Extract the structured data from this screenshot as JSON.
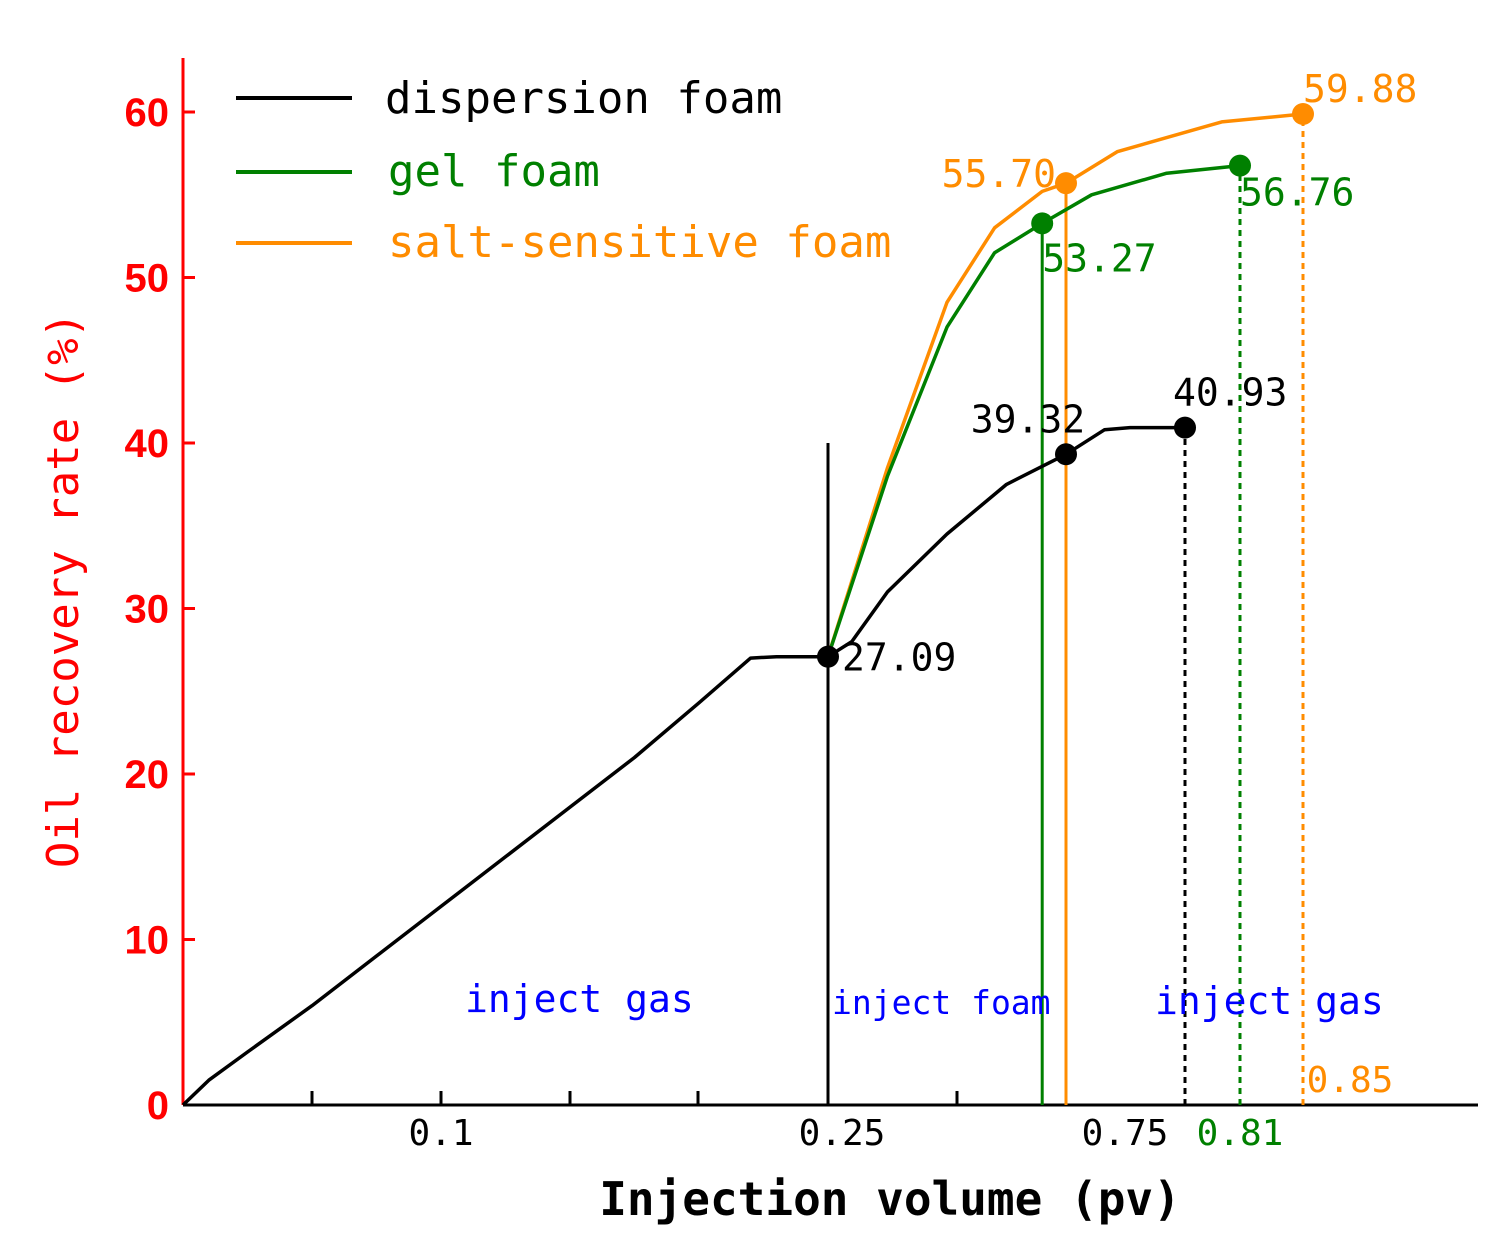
{
  "chart_data": {
    "type": "line",
    "xlabel": "Injection volume (pv)",
    "ylabel": "Oil recovery rate (%)",
    "ylim": [
      0,
      63
    ],
    "yticks": [
      "0",
      "10",
      "20",
      "30",
      "40",
      "50",
      "60"
    ],
    "xticks": [
      {
        "label": "0.1",
        "color": "#000000"
      },
      {
        "label": "0.25",
        "color": "#000000"
      },
      {
        "label": "0.75",
        "color": "#000000"
      },
      {
        "label": "0.81",
        "color": "#008000"
      },
      {
        "label": "0.85",
        "color": "#FF8C00"
      }
    ],
    "axis_color_y": "#FF0000",
    "series": [
      {
        "name": "dispersion foam",
        "color": "#000000",
        "points": [
          [
            0,
            0
          ],
          [
            0.02,
            1.5
          ],
          [
            0.05,
            3.2
          ],
          [
            0.1,
            6
          ],
          [
            0.15,
            9
          ],
          [
            0.2,
            12
          ],
          [
            0.25,
            15
          ],
          [
            0.3,
            18
          ],
          [
            0.35,
            21
          ],
          [
            0.4,
            24.3
          ],
          [
            0.44,
            27
          ],
          [
            0.46,
            27.09
          ],
          [
            0.5,
            27.09
          ],
          [
            0.52,
            28
          ],
          [
            0.55,
            31
          ],
          [
            0.6,
            34.5
          ],
          [
            0.65,
            37.5
          ],
          [
            0.7,
            39.32
          ],
          [
            0.73,
            40.8
          ],
          [
            0.75,
            40.93
          ],
          [
            0.78,
            40.93
          ]
        ],
        "markers": [
          {
            "x": 0.5,
            "y": 27.09,
            "label": "27.09"
          },
          {
            "x": 0.7,
            "y": 39.32,
            "label": "39.32"
          },
          {
            "x": 0.78,
            "y": 40.93,
            "label": "40.93"
          }
        ]
      },
      {
        "name": "gel foam",
        "color": "#008000",
        "points": [
          [
            0.5,
            27.09
          ],
          [
            0.55,
            38
          ],
          [
            0.6,
            47
          ],
          [
            0.64,
            51.5
          ],
          [
            0.68,
            53.27
          ],
          [
            0.72,
            55
          ],
          [
            0.77,
            56.3
          ],
          [
            0.81,
            56.76
          ]
        ],
        "markers": [
          {
            "x": 0.68,
            "y": 53.27,
            "label": "53.27"
          },
          {
            "x": 0.81,
            "y": 56.76,
            "label": "56.76"
          }
        ]
      },
      {
        "name": "salt-sensitive foam",
        "color": "#FF8C00",
        "points": [
          [
            0.5,
            27.09
          ],
          [
            0.55,
            38.5
          ],
          [
            0.6,
            48.5
          ],
          [
            0.64,
            53
          ],
          [
            0.68,
            55.2
          ],
          [
            0.7,
            55.7
          ],
          [
            0.74,
            57.6
          ],
          [
            0.8,
            59.4
          ],
          [
            0.85,
            59.88
          ]
        ],
        "markers": [
          {
            "x": 0.7,
            "y": 55.7,
            "label": "55.70"
          },
          {
            "x": 0.85,
            "y": 59.88,
            "label": "59.88"
          }
        ]
      }
    ],
    "vertical_lines": [
      {
        "x": 0.5,
        "y_top": 40,
        "color": "#000000",
        "dashed": false
      },
      {
        "x": 0.7,
        "y_top": 39.32,
        "color": "#000000",
        "dashed": false
      },
      {
        "x": 0.68,
        "y_top": 53.27,
        "color": "#008000",
        "dashed": false
      },
      {
        "x": 0.7,
        "y_top": 55.7,
        "color": "#FF8C00",
        "dashed": false
      },
      {
        "x": 0.78,
        "y_top": 40.93,
        "color": "#000000",
        "dashed": true
      },
      {
        "x": 0.81,
        "y_top": 56.76,
        "color": "#008000",
        "dashed": true
      },
      {
        "x": 0.85,
        "y_top": 59.88,
        "color": "#FF8C00",
        "dashed": true
      }
    ],
    "regions": [
      {
        "label": "inject gas",
        "color": "#0000FF"
      },
      {
        "label": "inject foam",
        "color": "#0000FF"
      },
      {
        "label": "inject gas",
        "color": "#0000FF"
      }
    ],
    "legend_placement": "top-left"
  }
}
